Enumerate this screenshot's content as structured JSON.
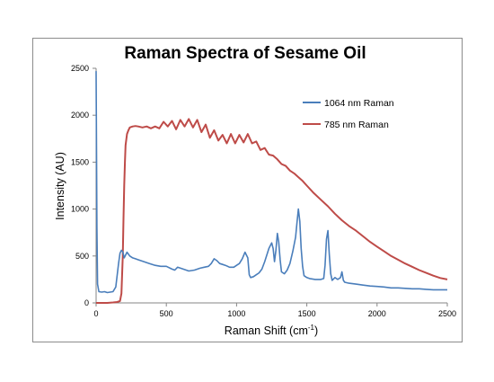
{
  "chart_data": {
    "type": "line",
    "title": "Raman Spectra of Sesame Oil",
    "xlabel": "Raman Shift (cm",
    "xlabel_sup": "-1",
    "xlabel_suffix": ")",
    "ylabel": "Intensity (AU)",
    "xlim": [
      0,
      2500
    ],
    "ylim": [
      0,
      2500
    ],
    "xticks": [
      "0",
      "500",
      "1000",
      "1500",
      "2000",
      "2500"
    ],
    "yticks": [
      "0",
      "500",
      "1000",
      "1500",
      "2000",
      "2500"
    ],
    "grid": false,
    "legend_position": "right",
    "series": [
      {
        "name": "1064 nm Raman",
        "color": "#4a7ebb",
        "x": [
          0,
          3,
          6,
          10,
          20,
          40,
          60,
          80,
          100,
          120,
          140,
          160,
          170,
          180,
          190,
          200,
          210,
          220,
          240,
          260,
          280,
          300,
          340,
          380,
          420,
          460,
          500,
          540,
          560,
          580,
          620,
          660,
          700,
          740,
          770,
          800,
          820,
          840,
          860,
          880,
          900,
          920,
          950,
          980,
          1000,
          1020,
          1040,
          1060,
          1080,
          1090,
          1100,
          1120,
          1140,
          1160,
          1180,
          1200,
          1230,
          1250,
          1260,
          1270,
          1280,
          1290,
          1300,
          1310,
          1320,
          1340,
          1360,
          1380,
          1400,
          1420,
          1430,
          1440,
          1450,
          1460,
          1470,
          1480,
          1500,
          1520,
          1560,
          1600,
          1620,
          1630,
          1640,
          1650,
          1660,
          1670,
          1680,
          1700,
          1720,
          1740,
          1750,
          1760,
          1770,
          1800,
          1850,
          1900,
          1950,
          2000,
          2050,
          2100,
          2150,
          2200,
          2250,
          2300,
          2350,
          2400,
          2450,
          2500
        ],
        "values": [
          2470,
          1550,
          800,
          200,
          120,
          115,
          120,
          110,
          115,
          120,
          170,
          420,
          530,
          560,
          545,
          480,
          510,
          540,
          500,
          480,
          470,
          460,
          440,
          420,
          400,
          390,
          390,
          360,
          350,
          380,
          360,
          340,
          350,
          370,
          380,
          390,
          420,
          470,
          450,
          420,
          410,
          400,
          380,
          380,
          400,
          420,
          470,
          540,
          480,
          300,
          270,
          280,
          300,
          320,
          360,
          440,
          580,
          640,
          580,
          440,
          560,
          740,
          650,
          460,
          330,
          310,
          350,
          420,
          550,
          700,
          860,
          1000,
          870,
          580,
          390,
          290,
          270,
          260,
          250,
          250,
          260,
          400,
          680,
          770,
          520,
          310,
          240,
          270,
          250,
          270,
          330,
          240,
          220,
          210,
          200,
          190,
          180,
          175,
          170,
          160,
          160,
          155,
          150,
          150,
          145,
          140,
          140,
          140
        ]
      },
      {
        "name": "785 nm Raman",
        "color": "#be4b48",
        "x": [
          0,
          40,
          80,
          120,
          150,
          170,
          180,
          190,
          195,
          200,
          205,
          210,
          220,
          230,
          240,
          260,
          280,
          300,
          330,
          360,
          390,
          420,
          450,
          480,
          510,
          540,
          570,
          600,
          630,
          660,
          690,
          720,
          750,
          780,
          810,
          840,
          870,
          900,
          930,
          960,
          990,
          1020,
          1050,
          1080,
          1110,
          1140,
          1170,
          1200,
          1230,
          1260,
          1290,
          1320,
          1350,
          1380,
          1410,
          1440,
          1470,
          1500,
          1550,
          1600,
          1650,
          1700,
          1750,
          1800,
          1850,
          1900,
          1950,
          2000,
          2050,
          2100,
          2150,
          2200,
          2250,
          2300,
          2350,
          2400,
          2450,
          2500
        ],
        "values": [
          0,
          0,
          0,
          5,
          10,
          20,
          100,
          500,
          900,
          1250,
          1500,
          1680,
          1800,
          1840,
          1870,
          1880,
          1885,
          1880,
          1870,
          1880,
          1860,
          1880,
          1860,
          1930,
          1880,
          1940,
          1850,
          1950,
          1880,
          1960,
          1870,
          1950,
          1820,
          1900,
          1760,
          1840,
          1730,
          1790,
          1700,
          1800,
          1700,
          1790,
          1710,
          1800,
          1700,
          1720,
          1630,
          1650,
          1580,
          1570,
          1530,
          1480,
          1460,
          1410,
          1380,
          1340,
          1300,
          1250,
          1170,
          1100,
          1030,
          950,
          880,
          820,
          770,
          710,
          650,
          600,
          550,
          500,
          460,
          420,
          385,
          350,
          320,
          290,
          265,
          250
        ]
      }
    ]
  }
}
